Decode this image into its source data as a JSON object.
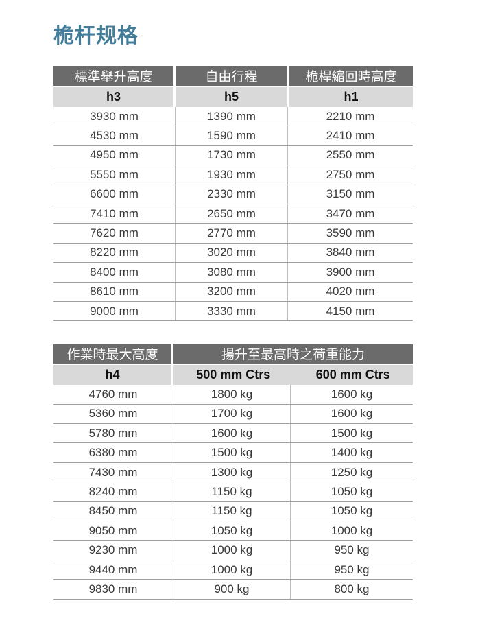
{
  "page": {
    "title": "桅杆规格"
  },
  "colors": {
    "accent": "#437d99",
    "header_bg": "#6b6b6b",
    "header_text": "#ffffff",
    "subheader_bg": "#d9d9d9",
    "body_text": "#3a3a3a",
    "row_line": "#9e9e9e",
    "col_line": "#bdbdbd"
  },
  "tables": [
    {
      "name": "mast-dimensions",
      "headers": [
        "標準舉升高度",
        "自由行程",
        "桅桿縮回時高度"
      ],
      "subheaders": [
        "h3",
        "h5",
        "h1"
      ],
      "rows": [
        [
          "3930 mm",
          "1390 mm",
          "2210 mm"
        ],
        [
          "4530 mm",
          "1590 mm",
          "2410 mm"
        ],
        [
          "4950 mm",
          "1730 mm",
          "2550 mm"
        ],
        [
          "5550 mm",
          "1930 mm",
          "2750 mm"
        ],
        [
          "6600 mm",
          "2330 mm",
          "3150 mm"
        ],
        [
          "7410 mm",
          "2650 mm",
          "3470 mm"
        ],
        [
          "7620 mm",
          "2770 mm",
          "3590 mm"
        ],
        [
          "8220 mm",
          "3020 mm",
          "3840 mm"
        ],
        [
          "8400 mm",
          "3080 mm",
          "3900 mm"
        ],
        [
          "8610 mm",
          "3200 mm",
          "4020 mm"
        ],
        [
          "9000 mm",
          "3330 mm",
          "4150 mm"
        ]
      ]
    },
    {
      "name": "load-capacity",
      "header_col1": "作業時最大高度",
      "header_span": "揚升至最高時之荷重能力",
      "subheaders": [
        "h4",
        "500 mm Ctrs",
        "600 mm Ctrs"
      ],
      "rows": [
        [
          "4760 mm",
          "1800 kg",
          "1600 kg"
        ],
        [
          "5360 mm",
          "1700 kg",
          "1600 kg"
        ],
        [
          "5780 mm",
          "1600 kg",
          "1500 kg"
        ],
        [
          "6380 mm",
          "1500 kg",
          "1400 kg"
        ],
        [
          "7430 mm",
          "1300 kg",
          "1250 kg"
        ],
        [
          "8240 mm",
          "1150 kg",
          "1050 kg"
        ],
        [
          "8450 mm",
          "1150 kg",
          "1050 kg"
        ],
        [
          "9050 mm",
          "1050 kg",
          "1000 kg"
        ],
        [
          "9230 mm",
          "1000 kg",
          "950 kg"
        ],
        [
          "9440 mm",
          "1000 kg",
          "950 kg"
        ],
        [
          "9830 mm",
          "900 kg",
          "800 kg"
        ]
      ]
    }
  ]
}
